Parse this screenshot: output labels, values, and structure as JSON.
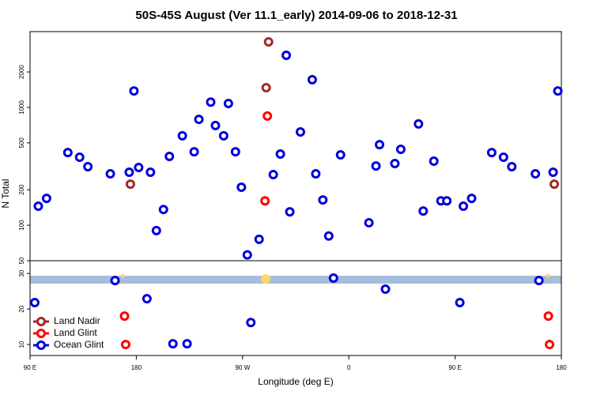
{
  "chart_data": [
    {
      "type": "scatter",
      "title": "50S-45S August (Ver 11.1_early)   2014-09-06 to 2018-12-31",
      "ylabel": "N Total",
      "ylog": true,
      "xlim": [
        90,
        540
      ],
      "ylim": [
        50,
        4400
      ],
      "yticks": [
        50,
        100,
        200,
        500,
        1000,
        2000
      ],
      "series": [
        {
          "name": "Land Nadir",
          "color": "#a52a2a",
          "x": [
            292,
            290,
            175,
            534
          ],
          "values": [
            3600,
            1470,
            223,
            223
          ]
        },
        {
          "name": "Land Glint",
          "color": "#ff0000",
          "x": [
            291,
            289
          ],
          "values": [
            845,
            161
          ]
        },
        {
          "name": "Ocean Glint",
          "color": "#0000dd",
          "x": [
            97,
            104,
            122,
            132,
            139,
            158,
            174,
            178,
            182,
            192,
            197,
            203,
            208,
            219,
            229,
            233,
            243,
            247,
            254,
            258,
            264,
            269,
            274,
            284,
            296,
            302,
            307,
            310,
            319,
            329,
            332,
            338,
            343,
            353,
            377,
            383,
            386,
            399,
            404,
            419,
            423,
            432,
            438,
            443,
            457,
            464,
            481,
            491,
            498,
            518,
            533,
            537
          ],
          "values": [
            145,
            169,
            414,
            378,
            314,
            273,
            282,
            1380,
            309,
            282,
            90,
            136,
            384,
            574,
            420,
            792,
            1110,
            702,
            574,
            1080,
            420,
            210,
            56,
            76,
            269,
            402,
            2770,
            130,
            619,
            1720,
            273,
            164,
            81,
            396,
            105,
            318,
            483,
            334,
            441,
            724,
            132,
            350,
            161,
            161,
            145,
            169,
            414,
            378,
            314,
            273,
            282,
            1380
          ]
        }
      ]
    },
    {
      "type": "scatter",
      "xlabel": "Longitude (deg E)",
      "xlim": [
        90,
        540
      ],
      "xticks": [
        {
          "value": 90,
          "label": "90 E"
        },
        180,
        {
          "value": 270,
          "label": "90 W"
        },
        {
          "value": 360,
          "label": "0"
        },
        {
          "value": 450,
          "label": "90 E"
        },
        {
          "value": 540,
          "label": "180"
        }
      ],
      "ylim": [
        6.9,
        33.6
      ],
      "yticks": [
        10,
        20,
        30
      ],
      "legend": "lower left",
      "series": [
        {
          "name": "Land Nadir",
          "color": "#a52a2a",
          "x": [],
          "values": []
        },
        {
          "name": "Land Glint",
          "color": "#ff0000",
          "x": [
            170,
            171,
            529,
            530
          ],
          "values": [
            18,
            10,
            18,
            10
          ]
        },
        {
          "name": "Ocean Glint",
          "color": "#0000dd",
          "x": [
            94,
            162,
            189,
            211,
            223,
            277,
            347,
            391,
            454,
            521
          ],
          "values": [
            21.8,
            28,
            22.9,
            10.2,
            10.2,
            16.2,
            28.7,
            25.6,
            21.8,
            28
          ]
        }
      ]
    }
  ]
}
